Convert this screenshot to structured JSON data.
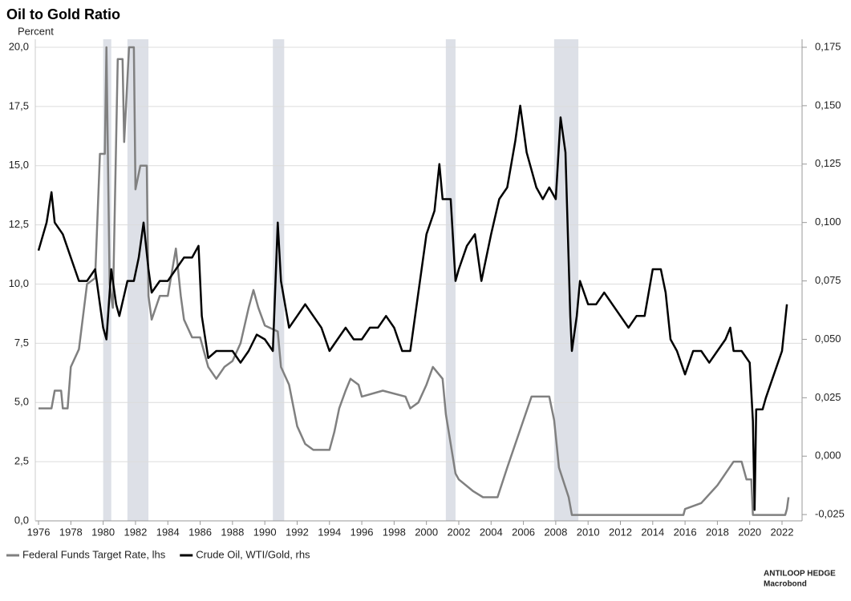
{
  "chart_data": {
    "type": "line",
    "title": "Oil to Gold Ratio",
    "y_label": "Percent",
    "source": "ANTILOOP HEDGE",
    "source_note": "Macrobond",
    "xlim": [
      1975.8,
      2023.24
    ],
    "xticks": [
      1976,
      1978,
      1980,
      1982,
      1984,
      1986,
      1988,
      1990,
      1992,
      1994,
      1996,
      1998,
      2000,
      2002,
      2004,
      2006,
      2008,
      2010,
      2012,
      2014,
      2016,
      2018,
      2020,
      2022
    ],
    "ylim": [
      0,
      20
    ],
    "yticks": [
      {
        "value": 0,
        "label": "0,0"
      },
      {
        "value": 2.5,
        "label": "2,5"
      },
      {
        "value": 5,
        "label": "5,0"
      },
      {
        "value": 7.5,
        "label": "7,5"
      },
      {
        "value": 10,
        "label": "10,0"
      },
      {
        "value": 12.5,
        "label": "12,5"
      },
      {
        "value": 15,
        "label": "15,0"
      },
      {
        "value": 17.5,
        "label": "17,5"
      },
      {
        "value": 20,
        "label": "20,0"
      }
    ],
    "y2lim": [
      -0.0277,
      0.175
    ],
    "y2ticks": [
      {
        "value": -0.025,
        "label": "-0,025"
      },
      {
        "value": 0,
        "label": "0,000"
      },
      {
        "value": 0.025,
        "label": "0,025"
      },
      {
        "value": 0.05,
        "label": "0,050"
      },
      {
        "value": 0.075,
        "label": "0,075"
      },
      {
        "value": 0.1,
        "label": "0,100"
      },
      {
        "value": 0.125,
        "label": "0,125"
      },
      {
        "value": 0.15,
        "label": "0,150"
      },
      {
        "value": 0.175,
        "label": "0,175"
      }
    ],
    "grid": true,
    "shaded_periods": [
      [
        1980.0,
        1980.5
      ],
      [
        1981.5,
        1982.8
      ],
      [
        1990.5,
        1991.2
      ],
      [
        2001.2,
        2001.8
      ],
      [
        2007.9,
        2009.4
      ]
    ],
    "shade_color": "#dde0e7",
    "series": [
      {
        "name": "Federal Funds Target Rate, lhs",
        "color": "#808080",
        "axis": "y",
        "x": [
          1976.0,
          1976.8,
          1977.0,
          1977.4,
          1977.5,
          1977.8,
          1978.0,
          1978.5,
          1979.0,
          1979.5,
          1979.8,
          1980.1,
          1980.2,
          1980.4,
          1980.6,
          1980.9,
          1981.2,
          1981.3,
          1981.6,
          1981.9,
          1982.0,
          1982.3,
          1982.7,
          1982.8,
          1983.0,
          1983.5,
          1984.0,
          1984.5,
          1984.8,
          1985.0,
          1985.5,
          1986.0,
          1986.5,
          1987.0,
          1987.5,
          1988.0,
          1988.5,
          1989.0,
          1989.3,
          1989.6,
          1990.0,
          1990.8,
          1991.0,
          1991.5,
          1992.0,
          1992.5,
          1993.0,
          1994.0,
          1994.3,
          1994.6,
          1995.0,
          1995.3,
          1995.8,
          1996.0,
          1997.3,
          1998.7,
          1999.0,
          1999.5,
          2000.0,
          2000.4,
          2001.0,
          2001.2,
          2001.8,
          2002.0,
          2002.9,
          2003.5,
          2004.4,
          2005.0,
          2006.0,
          2006.5,
          2007.6,
          2007.9,
          2008.2,
          2008.8,
          2009.0,
          2015.9,
          2016.0,
          2017.0,
          2018.0,
          2019.0,
          2019.5,
          2019.8,
          2020.1,
          2020.2,
          2022.2,
          2022.3,
          2022.4
        ],
        "values": [
          4.75,
          4.75,
          5.5,
          5.5,
          4.75,
          4.75,
          6.5,
          7.25,
          10.0,
          10.25,
          15.5,
          15.5,
          20.0,
          10,
          9,
          19.5,
          19.5,
          16,
          20,
          20,
          14,
          15,
          15,
          9.5,
          8.5,
          9.5,
          9.5,
          11.5,
          9.5,
          8.5,
          7.75,
          7.75,
          6.5,
          6,
          6.5,
          6.75,
          7.5,
          9.0,
          9.75,
          9.0,
          8.25,
          8.0,
          6.5,
          5.75,
          4.0,
          3.25,
          3.0,
          3.0,
          3.75,
          4.75,
          5.5,
          6.0,
          5.75,
          5.25,
          5.5,
          5.25,
          4.75,
          5.0,
          5.75,
          6.5,
          6.0,
          4.5,
          2.0,
          1.75,
          1.25,
          1.0,
          1.0,
          2.25,
          4.25,
          5.25,
          5.25,
          4.25,
          2.25,
          1.0,
          0.25,
          0.25,
          0.5,
          0.75,
          1.5,
          2.5,
          2.5,
          1.75,
          1.75,
          0.25,
          0.25,
          0.5,
          1.0
        ]
      },
      {
        "name": "Crude Oil, WTI/Gold, rhs",
        "color": "#000000",
        "axis": "y2",
        "x": [
          1976.0,
          1976.5,
          1976.8,
          1977.0,
          1977.5,
          1978.0,
          1978.5,
          1979.0,
          1979.5,
          1980.0,
          1980.2,
          1980.5,
          1980.8,
          1981.0,
          1981.5,
          1981.9,
          1982.2,
          1982.5,
          1982.8,
          1983.0,
          1983.5,
          1984.0,
          1984.5,
          1985.0,
          1985.5,
          1985.9,
          1986.1,
          1986.5,
          1987.0,
          1987.5,
          1988.0,
          1988.5,
          1989.0,
          1989.5,
          1990.0,
          1990.5,
          1990.8,
          1991.0,
          1991.5,
          1992.0,
          1992.5,
          1993.0,
          1993.5,
          1994.0,
          1994.5,
          1995.0,
          1995.5,
          1996.0,
          1996.5,
          1997.0,
          1997.5,
          1998.0,
          1998.5,
          1999.0,
          1999.5,
          2000.0,
          2000.5,
          2000.8,
          2001.0,
          2001.5,
          2001.8,
          2002.0,
          2002.5,
          2003.0,
          2003.4,
          2004.0,
          2004.5,
          2005.0,
          2005.5,
          2005.8,
          2006.2,
          2006.8,
          2007.2,
          2007.6,
          2008.0,
          2008.3,
          2008.6,
          2008.9,
          2009.0,
          2009.3,
          2009.5,
          2010.0,
          2010.5,
          2011.0,
          2011.5,
          2012.0,
          2012.5,
          2013.0,
          2013.5,
          2014.0,
          2014.5,
          2014.8,
          2015.1,
          2015.5,
          2016.0,
          2016.5,
          2017.0,
          2017.5,
          2018.0,
          2018.5,
          2018.8,
          2019.0,
          2019.5,
          2020.0,
          2020.2,
          2020.3,
          2020.4,
          2020.8,
          2021.0,
          2021.5,
          2022.0,
          2022.3
        ],
        "values": [
          0.088,
          0.1,
          0.113,
          0.1,
          0.095,
          0.085,
          0.075,
          0.075,
          0.08,
          0.055,
          0.05,
          0.08,
          0.065,
          0.06,
          0.075,
          0.075,
          0.085,
          0.1,
          0.08,
          0.07,
          0.075,
          0.075,
          0.08,
          0.085,
          0.085,
          0.09,
          0.06,
          0.042,
          0.045,
          0.045,
          0.045,
          0.04,
          0.045,
          0.052,
          0.05,
          0.045,
          0.1,
          0.075,
          0.055,
          0.06,
          0.065,
          0.06,
          0.055,
          0.045,
          0.05,
          0.055,
          0.05,
          0.05,
          0.055,
          0.055,
          0.06,
          0.055,
          0.045,
          0.045,
          0.07,
          0.095,
          0.105,
          0.125,
          0.11,
          0.11,
          0.075,
          0.08,
          0.09,
          0.095,
          0.075,
          0.095,
          0.11,
          0.115,
          0.135,
          0.15,
          0.13,
          0.115,
          0.11,
          0.115,
          0.11,
          0.145,
          0.13,
          0.06,
          0.045,
          0.06,
          0.075,
          0.065,
          0.065,
          0.07,
          0.065,
          0.06,
          0.055,
          0.06,
          0.06,
          0.08,
          0.08,
          0.07,
          0.05,
          0.045,
          0.035,
          0.045,
          0.045,
          0.04,
          0.045,
          0.05,
          0.055,
          0.045,
          0.045,
          0.04,
          0.015,
          -0.023,
          0.02,
          0.02,
          0.025,
          0.035,
          0.045,
          0.065
        ]
      }
    ]
  }
}
